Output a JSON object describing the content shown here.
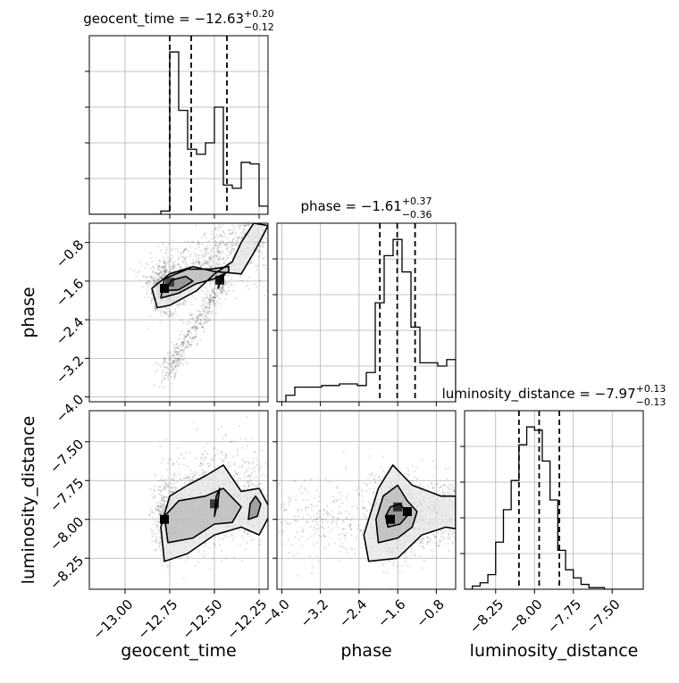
{
  "chart_data": {
    "type": "corner",
    "parameters": [
      "geocent_time",
      "phase",
      "luminosity_distance"
    ],
    "grid": true,
    "titles": [
      {
        "param": "geocent_time",
        "label": "geocent_time = ",
        "median": "−12.63",
        "plus": "+0.20",
        "minus": "−0.12"
      },
      {
        "param": "phase",
        "label": "phase = ",
        "median": "−1.61",
        "plus": "+0.37",
        "minus": "−0.36"
      },
      {
        "param": "luminosity_distance",
        "label": "luminosity_distance = ",
        "median": "−7.97",
        "plus": "+0.13",
        "minus": "−0.13"
      }
    ],
    "axes": {
      "geocent_time": {
        "label": "geocent_time",
        "range": [
          -13.2,
          -12.2
        ],
        "ticks": [
          -13.0,
          -12.75,
          -12.5,
          -12.25
        ],
        "tick_labels": [
          "−13.00",
          "−12.75",
          "−12.50",
          "−12.25"
        ]
      },
      "phase": {
        "label": "phase",
        "range": [
          -4.1,
          -0.4
        ],
        "ticks": [
          -4.0,
          -3.2,
          -2.4,
          -1.6,
          -0.8
        ],
        "tick_labels": [
          "−4.0",
          "−3.2",
          "−2.4",
          "−1.6",
          "−0.8"
        ]
      },
      "luminosity_distance": {
        "label": "luminosity_distance",
        "range": [
          -8.45,
          -7.3
        ],
        "ticks": [
          -8.25,
          -8.0,
          -7.75,
          -7.5
        ],
        "tick_labels": [
          "−8.25",
          "−8.00",
          "−7.75",
          "−7.50"
        ]
      }
    },
    "histograms": [
      {
        "param": "geocent_time",
        "edges": [
          -13.2,
          -13.15,
          -13.1,
          -13.05,
          -13.0,
          -12.95,
          -12.9,
          -12.85,
          -12.8,
          -12.75,
          -12.7,
          -12.65,
          -12.6,
          -12.55,
          -12.5,
          -12.45,
          -12.4,
          -12.35,
          -12.3,
          -12.25,
          -12.2
        ],
        "counts": [
          0,
          0,
          0,
          0,
          0,
          0,
          0,
          0,
          0.02,
          1.0,
          0.64,
          0.4,
          0.37,
          0.44,
          0.66,
          0.18,
          0.16,
          0.32,
          0.31,
          0.05
        ],
        "quantiles": [
          -12.75,
          -12.63,
          -12.43
        ]
      },
      {
        "param": "phase",
        "edges": [
          -4.1,
          -3.915,
          -3.73,
          -3.545,
          -3.36,
          -3.175,
          -2.99,
          -2.805,
          -2.62,
          -2.435,
          -2.25,
          -2.065,
          -1.88,
          -1.695,
          -1.51,
          -1.325,
          -1.14,
          -0.955,
          -0.77,
          -0.585,
          -0.4
        ],
        "counts": [
          0.0,
          0.04,
          0.09,
          0.09,
          0.09,
          0.1,
          0.1,
          0.11,
          0.11,
          0.1,
          0.18,
          0.61,
          0.9,
          1.0,
          0.8,
          0.46,
          0.24,
          0.24,
          0.22,
          0.26
        ],
        "quantiles": [
          -1.97,
          -1.61,
          -1.24
        ]
      },
      {
        "param": "luminosity_distance",
        "edges": [
          -8.45,
          -8.4,
          -8.35,
          -8.3,
          -8.25,
          -8.2,
          -8.15,
          -8.1,
          -8.05,
          -8.0,
          -7.95,
          -7.9,
          -7.85,
          -7.8,
          -7.75,
          -7.7,
          -7.65,
          -7.6,
          -7.55,
          -7.5,
          -7.45,
          -7.4,
          -7.35,
          -7.3
        ],
        "counts": [
          0.0,
          0.02,
          0.04,
          0.09,
          0.29,
          0.49,
          0.67,
          0.89,
          1.0,
          0.98,
          0.79,
          0.55,
          0.24,
          0.12,
          0.07,
          0.03,
          0.01,
          0.01,
          0.0,
          0.0,
          0.0,
          0.0,
          0.0
        ],
        "quantiles": [
          -8.1,
          -7.97,
          -7.84
        ]
      }
    ],
    "pairs": [
      {
        "x": "geocent_time",
        "y": "phase",
        "blobs": [
          {
            "cx": -12.77,
            "cy": -1.75,
            "sx": 0.05,
            "sy": 0.28,
            "n": 600
          },
          {
            "cx": -12.6,
            "cy": -1.35,
            "sx": 0.12,
            "sy": 0.25,
            "n": 300
          },
          {
            "cx": -12.42,
            "cy": -0.9,
            "sx": 0.1,
            "sy": 0.35,
            "n": 300
          },
          {
            "cx": -12.28,
            "cy": -0.6,
            "sx": 0.05,
            "sy": 0.2,
            "n": 150
          }
        ],
        "streak": {
          "x0": -12.78,
          "y0": -3.6,
          "x1": -12.45,
          "y1": -1.6,
          "n": 400
        },
        "contours": [
          [
            [
              -12.82,
              -2.15
            ],
            [
              -12.75,
              -2.1
            ],
            [
              -12.6,
              -1.8
            ],
            [
              -12.5,
              -1.45
            ],
            [
              -12.4,
              -1.2
            ],
            [
              -12.35,
              -0.8
            ],
            [
              -12.28,
              -0.4
            ],
            [
              -12.2,
              -0.45
            ],
            [
              -12.27,
              -0.95
            ],
            [
              -12.35,
              -1.45
            ],
            [
              -12.5,
              -1.4
            ],
            [
              -12.62,
              -1.3
            ],
            [
              -12.75,
              -1.45
            ],
            [
              -12.85,
              -1.75
            ],
            [
              -12.82,
              -2.15
            ]
          ],
          [
            [
              -12.8,
              -1.95
            ],
            [
              -12.7,
              -1.85
            ],
            [
              -12.6,
              -1.65
            ],
            [
              -12.5,
              -1.55
            ],
            [
              -12.42,
              -1.4
            ],
            [
              -12.42,
              -1.3
            ],
            [
              -12.52,
              -1.35
            ],
            [
              -12.65,
              -1.35
            ],
            [
              -12.78,
              -1.55
            ],
            [
              -12.8,
              -1.95
            ]
          ],
          [
            [
              -12.78,
              -1.8
            ],
            [
              -12.7,
              -1.78
            ],
            [
              -12.62,
              -1.6
            ],
            [
              -12.66,
              -1.5
            ],
            [
              -12.74,
              -1.58
            ],
            [
              -12.78,
              -1.8
            ]
          ],
          [
            [
              -12.48,
              -1.75
            ],
            [
              -12.46,
              -1.55
            ],
            [
              -12.44,
              -1.45
            ],
            [
              -12.46,
              -1.5
            ],
            [
              -12.48,
              -1.75
            ]
          ]
        ],
        "density_cells": [
          {
            "x": -12.78,
            "y": -1.75,
            "v": 1.0
          },
          {
            "x": -12.75,
            "y": -1.62,
            "v": 0.6
          },
          {
            "x": -12.47,
            "y": -1.58,
            "v": 0.9
          }
        ]
      },
      {
        "x": "geocent_time",
        "y": "luminosity_distance",
        "blobs": [
          {
            "cx": -12.76,
            "cy": -7.99,
            "sx": 0.04,
            "sy": 0.12,
            "n": 500
          },
          {
            "cx": -12.62,
            "cy": -7.95,
            "sx": 0.08,
            "sy": 0.14,
            "n": 350
          },
          {
            "cx": -12.45,
            "cy": -7.9,
            "sx": 0.08,
            "sy": 0.14,
            "n": 300
          },
          {
            "cx": -12.3,
            "cy": -7.93,
            "sx": 0.05,
            "sy": 0.1,
            "n": 200
          },
          {
            "cx": -12.45,
            "cy": -7.7,
            "sx": 0.15,
            "sy": 0.12,
            "n": 200
          }
        ],
        "contours": [
          [
            [
              -12.78,
              -8.27
            ],
            [
              -12.65,
              -8.22
            ],
            [
              -12.5,
              -8.1
            ],
            [
              -12.35,
              -8.05
            ],
            [
              -12.25,
              -8.1
            ],
            [
              -12.18,
              -7.95
            ],
            [
              -12.25,
              -7.8
            ],
            [
              -12.35,
              -7.82
            ],
            [
              -12.45,
              -7.65
            ],
            [
              -12.55,
              -7.72
            ],
            [
              -12.65,
              -7.78
            ],
            [
              -12.75,
              -7.85
            ],
            [
              -12.8,
              -8.05
            ],
            [
              -12.78,
              -8.27
            ]
          ],
          [
            [
              -12.76,
              -8.15
            ],
            [
              -12.62,
              -8.12
            ],
            [
              -12.5,
              -8.03
            ],
            [
              -12.4,
              -8.02
            ],
            [
              -12.35,
              -7.92
            ],
            [
              -12.45,
              -7.8
            ],
            [
              -12.55,
              -7.85
            ],
            [
              -12.7,
              -7.88
            ],
            [
              -12.78,
              -7.98
            ],
            [
              -12.76,
              -8.15
            ]
          ],
          [
            [
              -12.31,
              -8.0
            ],
            [
              -12.26,
              -7.98
            ],
            [
              -12.24,
              -7.9
            ],
            [
              -12.27,
              -7.85
            ],
            [
              -12.3,
              -7.9
            ],
            [
              -12.31,
              -8.0
            ]
          ],
          [
            [
              -12.5,
              -7.98
            ],
            [
              -12.48,
              -7.88
            ],
            [
              -12.47,
              -7.8
            ],
            [
              -12.49,
              -7.85
            ],
            [
              -12.5,
              -7.98
            ]
          ]
        ],
        "density_cells": [
          {
            "x": -12.78,
            "y": -8.0,
            "v": 1.0
          },
          {
            "x": -12.5,
            "y": -7.9,
            "v": 0.7
          }
        ]
      },
      {
        "x": "phase",
        "y": "luminosity_distance",
        "blobs": [
          {
            "cx": -1.6,
            "cy": -7.98,
            "sx": 0.32,
            "sy": 0.13,
            "n": 1100
          },
          {
            "cx": -3.2,
            "cy": -8.0,
            "sx": 0.6,
            "sy": 0.12,
            "n": 250
          },
          {
            "cx": -0.7,
            "cy": -7.95,
            "sx": 0.25,
            "sy": 0.12,
            "n": 250
          }
        ],
        "contours": [
          [
            [
              -2.2,
              -8.27
            ],
            [
              -1.6,
              -8.25
            ],
            [
              -1.1,
              -8.1
            ],
            [
              -0.6,
              -8.05
            ],
            [
              -0.4,
              -8.06
            ],
            [
              -0.4,
              -7.85
            ],
            [
              -0.7,
              -7.85
            ],
            [
              -1.3,
              -7.78
            ],
            [
              -1.7,
              -7.65
            ],
            [
              -2.0,
              -7.8
            ],
            [
              -2.3,
              -8.1
            ],
            [
              -2.2,
              -8.27
            ]
          ],
          [
            [
              -2.0,
              -8.15
            ],
            [
              -1.6,
              -8.12
            ],
            [
              -1.3,
              -8.05
            ],
            [
              -1.2,
              -7.95
            ],
            [
              -1.4,
              -7.88
            ],
            [
              -1.6,
              -7.78
            ],
            [
              -1.9,
              -7.85
            ],
            [
              -2.05,
              -8.0
            ],
            [
              -2.0,
              -8.15
            ]
          ],
          [
            [
              -1.8,
              -8.05
            ],
            [
              -1.55,
              -8.03
            ],
            [
              -1.38,
              -7.97
            ],
            [
              -1.55,
              -7.9
            ],
            [
              -1.75,
              -7.92
            ],
            [
              -1.85,
              -7.98
            ],
            [
              -1.8,
              -8.05
            ]
          ]
        ],
        "density_cells": [
          {
            "x": -1.75,
            "y": -8.0,
            "v": 1.0
          },
          {
            "x": -1.4,
            "y": -7.95,
            "v": 1.0
          },
          {
            "x": -1.6,
            "y": -7.92,
            "v": 0.7
          }
        ]
      }
    ]
  }
}
